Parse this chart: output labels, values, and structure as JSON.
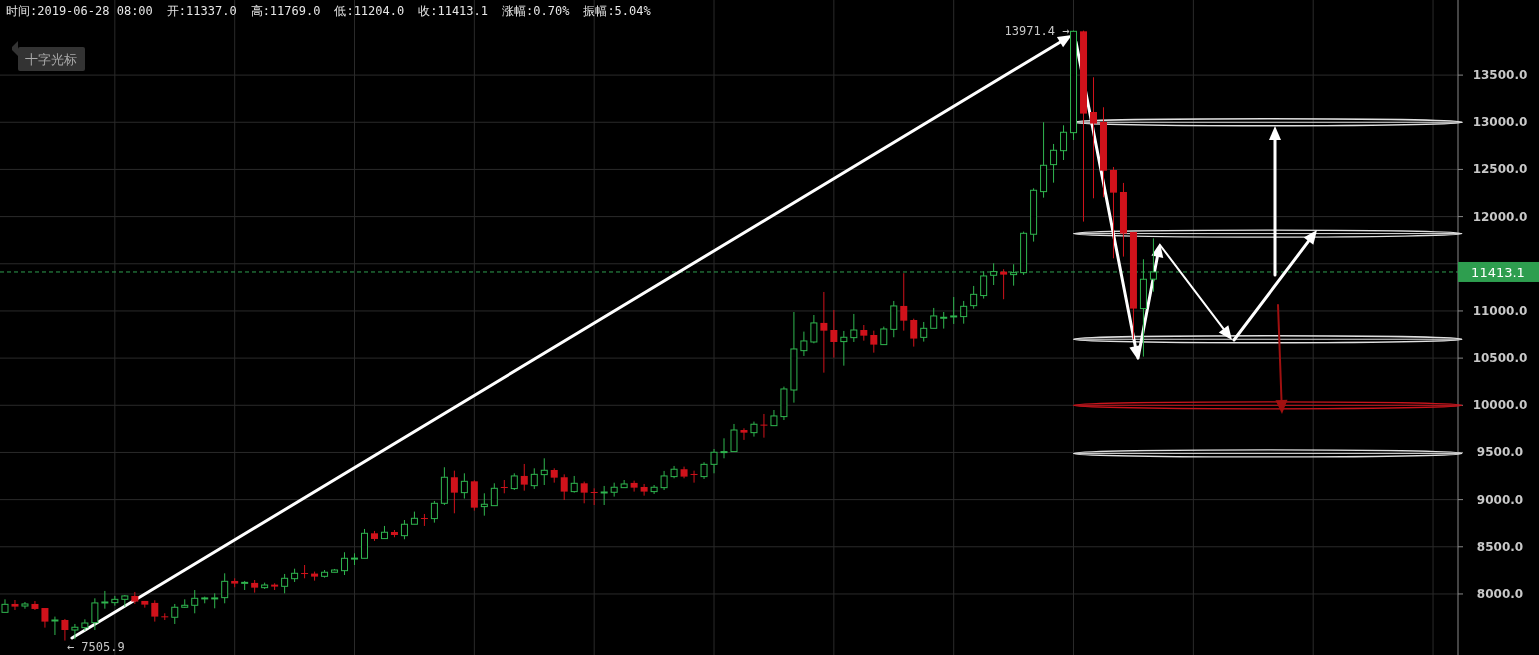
{
  "chart_data": {
    "type": "candlestick",
    "categories": [
      null,
      null,
      null,
      null,
      null,
      null,
      null,
      null,
      null,
      null,
      null,
      null,
      null,
      null,
      null,
      null,
      null,
      null,
      null,
      null,
      null,
      null,
      null,
      null,
      null,
      null,
      null,
      null,
      null,
      null,
      null,
      null,
      null,
      null,
      null,
      null,
      null,
      null,
      null,
      null,
      null,
      null,
      null,
      null,
      null,
      null,
      null,
      null,
      null,
      null,
      null,
      null,
      null,
      null,
      null,
      null,
      null,
      null,
      null,
      null,
      null,
      null,
      null,
      null,
      null,
      null,
      null,
      null,
      null,
      null,
      null,
      null,
      null,
      null,
      null,
      null,
      null,
      null,
      null,
      null,
      null,
      null,
      null,
      null,
      null,
      null,
      null,
      null,
      null,
      null,
      null,
      null,
      null,
      null,
      null,
      null,
      null,
      null,
      null,
      null,
      null,
      null,
      null,
      null,
      null,
      null,
      null,
      null,
      null,
      null,
      null,
      null,
      null,
      null,
      null,
      null,
      null,
      null,
      null,
      null,
      null,
      null,
      null,
      null,
      null,
      null,
      null,
      null,
      null,
      null,
      null,
      null,
      null,
      null,
      null,
      null,
      null,
      null,
      null,
      null,
      null,
      null,
      null,
      null,
      null,
      null
    ],
    "ohlc": [
      [
        7805,
        7943,
        7805,
        7890
      ],
      [
        7894,
        7936,
        7830,
        7866
      ],
      [
        7872,
        7915,
        7844,
        7894
      ],
      [
        7894,
        7925,
        7830,
        7841
      ],
      [
        7851,
        7851,
        7643,
        7707
      ],
      [
        7717,
        7760,
        7565,
        7724
      ],
      [
        7724,
        7735,
        7505.9,
        7618
      ],
      [
        7618,
        7682,
        7520,
        7647
      ],
      [
        7643,
        7731,
        7611,
        7692
      ],
      [
        7696,
        7954,
        7618,
        7905
      ],
      [
        7908,
        8032,
        7844,
        7915
      ],
      [
        7908,
        7979,
        7876,
        7943
      ],
      [
        7943,
        7989,
        7866,
        7979
      ],
      [
        7979,
        8021,
        7894,
        7919
      ],
      [
        7926,
        7926,
        7855,
        7887
      ],
      [
        7905,
        7933,
        7707,
        7760
      ],
      [
        7763,
        7795,
        7724,
        7757
      ],
      [
        7753,
        7894,
        7682,
        7859
      ],
      [
        7859,
        7943,
        7852,
        7880
      ],
      [
        7880,
        8042,
        7795,
        7954
      ],
      [
        7954,
        7972,
        7901,
        7958
      ],
      [
        7955,
        8007,
        7848,
        7958
      ],
      [
        7961,
        8219,
        7901,
        8134
      ],
      [
        8138,
        8166,
        8071,
        8110
      ],
      [
        8116,
        8138,
        8042,
        8123
      ],
      [
        8117,
        8148,
        8014,
        8067
      ],
      [
        8067,
        8120,
        8053,
        8095
      ],
      [
        8099,
        8113,
        8042,
        8078
      ],
      [
        8081,
        8212,
        8007,
        8166
      ],
      [
        8162,
        8268,
        8127,
        8219
      ],
      [
        8222,
        8307,
        8166,
        8215
      ],
      [
        8216,
        8237,
        8141,
        8184
      ],
      [
        8187,
        8254,
        8173,
        8230
      ],
      [
        8230,
        8265,
        8230,
        8254
      ],
      [
        8247,
        8442,
        8201,
        8378
      ],
      [
        8376,
        8431,
        8307,
        8380
      ],
      [
        8378,
        8689,
        8378,
        8643
      ],
      [
        8643,
        8668,
        8562,
        8583
      ],
      [
        8587,
        8721,
        8587,
        8654
      ],
      [
        8657,
        8678,
        8601,
        8625
      ],
      [
        8618,
        8784,
        8580,
        8739
      ],
      [
        8739,
        8873,
        8739,
        8802
      ],
      [
        8805,
        8848,
        8721,
        8798
      ],
      [
        8799,
        8986,
        8756,
        8961
      ],
      [
        8961,
        9343,
        8943,
        9237
      ],
      [
        9237,
        9307,
        8855,
        9074
      ],
      [
        9074,
        9279,
        9011,
        9194
      ],
      [
        9194,
        9205,
        8883,
        8915
      ],
      [
        8926,
        9067,
        8830,
        8951
      ],
      [
        8936,
        9173,
        8936,
        9120
      ],
      [
        9134,
        9208,
        9067,
        9127
      ],
      [
        9117,
        9279,
        9102,
        9251
      ],
      [
        9251,
        9378,
        9095,
        9159
      ],
      [
        9148,
        9332,
        9113,
        9268
      ],
      [
        9265,
        9438,
        9155,
        9311
      ],
      [
        9314,
        9332,
        9180,
        9233
      ],
      [
        9237,
        9268,
        8996,
        9085
      ],
      [
        9085,
        9251,
        9074,
        9173
      ],
      [
        9173,
        9191,
        8961,
        9074
      ],
      [
        9081,
        9120,
        8943,
        9077
      ],
      [
        9077,
        9145,
        8943,
        9081
      ],
      [
        9078,
        9180,
        9032,
        9131
      ],
      [
        9127,
        9208,
        9127,
        9166
      ],
      [
        9177,
        9201,
        9085,
        9127
      ],
      [
        9134,
        9166,
        9042,
        9085
      ],
      [
        9085,
        9155,
        9060,
        9131
      ],
      [
        9127,
        9304,
        9102,
        9251
      ],
      [
        9244,
        9357,
        9226,
        9322
      ],
      [
        9322,
        9350,
        9226,
        9244
      ],
      [
        9272,
        9307,
        9180,
        9268
      ],
      [
        9244,
        9396,
        9219,
        9374
      ],
      [
        9374,
        9537,
        9279,
        9502
      ],
      [
        9505,
        9650,
        9438,
        9509
      ],
      [
        9509,
        9802,
        9509,
        9738
      ],
      [
        9738,
        9756,
        9633,
        9710
      ],
      [
        9710,
        9827,
        9668,
        9799
      ],
      [
        9795,
        9908,
        9657,
        9791
      ],
      [
        9784,
        9950,
        9784,
        9887
      ],
      [
        9880,
        10198,
        9844,
        10173
      ],
      [
        10162,
        10989,
        10028,
        10597
      ],
      [
        10579,
        10781,
        10523,
        10682
      ],
      [
        10671,
        10957,
        10657,
        10873
      ],
      [
        10873,
        11201,
        10346,
        10791
      ],
      [
        10798,
        11010,
        10505,
        10671
      ],
      [
        10675,
        10788,
        10420,
        10721
      ],
      [
        10717,
        10968,
        10671,
        10798
      ],
      [
        10798,
        10851,
        10685,
        10738
      ],
      [
        10745,
        10791,
        10558,
        10643
      ],
      [
        10643,
        10834,
        10643,
        10809
      ],
      [
        10805,
        11106,
        10721,
        11053
      ],
      [
        11053,
        11400,
        10791,
        10897
      ],
      [
        10904,
        10918,
        10622,
        10707
      ],
      [
        10720,
        10883,
        10675,
        10816
      ],
      [
        10816,
        11032,
        10816,
        10947
      ],
      [
        10930,
        10989,
        10813,
        10933
      ],
      [
        10944,
        11148,
        10862,
        10947
      ],
      [
        10940,
        11106,
        10865,
        11049
      ],
      [
        11056,
        11265,
        11024,
        11176
      ],
      [
        11163,
        11420,
        11131,
        11371
      ],
      [
        11378,
        11505,
        11275,
        11417
      ],
      [
        11417,
        11442,
        11124,
        11385
      ],
      [
        11385,
        11495,
        11268,
        11406
      ],
      [
        11406,
        11841,
        11382,
        11823
      ],
      [
        11813,
        12300,
        11735,
        12279
      ],
      [
        12265,
        13000,
        12201,
        12544
      ],
      [
        12551,
        12770,
        12360,
        12703
      ],
      [
        12699,
        12968,
        12600,
        12894
      ],
      [
        12890,
        13971.4,
        12812,
        13964
      ],
      [
        13964,
        13971.4,
        11947,
        13092
      ],
      [
        13109,
        13477,
        12194,
        12986
      ],
      [
        13003,
        13159,
        12205,
        12487
      ],
      [
        12494,
        12526,
        11558,
        12254
      ],
      [
        12261,
        12357,
        11576,
        11820
      ],
      [
        11837,
        11837,
        10700,
        11025
      ],
      [
        11025,
        11548,
        10516,
        11336
      ],
      [
        11337,
        11769,
        11204,
        11413.1
      ],
      null,
      null,
      null,
      null,
      null,
      null,
      null,
      null,
      null,
      null,
      null,
      null,
      null,
      null,
      null,
      null,
      null,
      null,
      null,
      null,
      null,
      null,
      null,
      null,
      null,
      null,
      null,
      null,
      null,
      null
    ],
    "ylim": [
      7353,
      14296
    ],
    "yticks": [
      {
        "value": 8000,
        "label": "8000.0"
      },
      {
        "value": 8500,
        "label": "8500.0"
      },
      {
        "value": 9000,
        "label": "9000.0"
      },
      {
        "value": 9500,
        "label": "9500.0"
      },
      {
        "value": 10000,
        "label": "10000.0"
      },
      {
        "value": 10500,
        "label": "10500.0"
      },
      {
        "value": 11000,
        "label": "11000.0"
      },
      {
        "value": 11500,
        "label": null
      },
      {
        "value": 12000,
        "label": "12000.0"
      },
      {
        "value": 12500,
        "label": "12500.0"
      },
      {
        "value": 13000,
        "label": "13000.0"
      },
      {
        "value": 13500,
        "label": "13500.0"
      }
    ],
    "grid": true,
    "ref_lines": [
      {
        "axis": "y",
        "value": 11413.1,
        "label": "11413.1",
        "color": "#2e9e4f",
        "line_style": "dashed"
      },
      {
        "axis": "y",
        "value": 13000,
        "color": "#e0e0e0"
      },
      {
        "axis": "y",
        "value": 11820,
        "color": "#e0e0e0"
      },
      {
        "axis": "y",
        "value": 10700,
        "color": "#e0e0e0"
      },
      {
        "axis": "y",
        "value": 10000,
        "color": "#c8141c"
      },
      {
        "axis": "y",
        "value": 9490,
        "color": "#e0e0e0"
      }
    ],
    "annotations": [
      "时间:2019-06-28 08:00",
      "开:11337.0",
      "高:11769.0",
      "低:11204.0",
      "收:11413.1",
      "涨幅:0.70%",
      "振幅:5.04%",
      "十字光标",
      "13971.4 →",
      "← 7505.9"
    ]
  }
}
